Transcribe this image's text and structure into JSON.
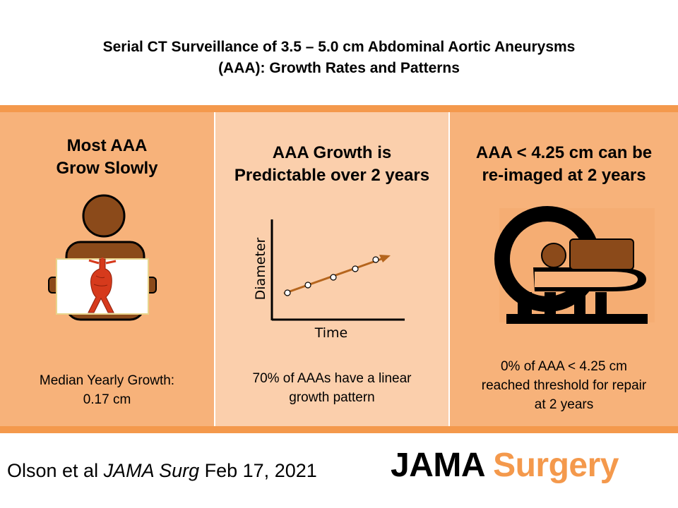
{
  "title": {
    "line1": "Serial CT Surveillance of 3.5 – 5.0 cm Abdominal Aortic Aneurysms",
    "line2": "(AAA): Growth Rates and Patterns"
  },
  "panels": [
    {
      "heading_line1": "Most AAA",
      "heading_line2": "Grow Slowly",
      "text_line1": "Median Yearly Growth:",
      "text_line2": "0.17 cm"
    },
    {
      "heading_line1": "AAA Growth is",
      "heading_line2": "Predictable over 2 years",
      "text_line1": "70% of AAAs  have a linear",
      "text_line2": "growth pattern"
    },
    {
      "heading_line1": "AAA < 4.25 cm can be",
      "heading_line2": "re-imaged at 2 years",
      "text_line1": "0% of AAA  < 4.25 cm",
      "text_line2": "reached threshold for repair",
      "text_line3": "at 2 years"
    }
  ],
  "graph": {
    "ylabel": "Diameter",
    "xlabel": "Time"
  },
  "footer": {
    "citation_authors": "Olson et al ",
    "citation_journal": "JAMA Surg",
    "citation_date": " Feb 17, 2021",
    "brand_jama": "JAMA",
    "brand_surgery": "Surgery"
  },
  "colors": {
    "band": "#f4994c",
    "panel_dark": "#f7b27a",
    "panel_light": "#fbcfac",
    "icon_brown": "#8b4a1a",
    "arrow_brown": "#b5651d",
    "aorta_red": "#d63a1c"
  }
}
